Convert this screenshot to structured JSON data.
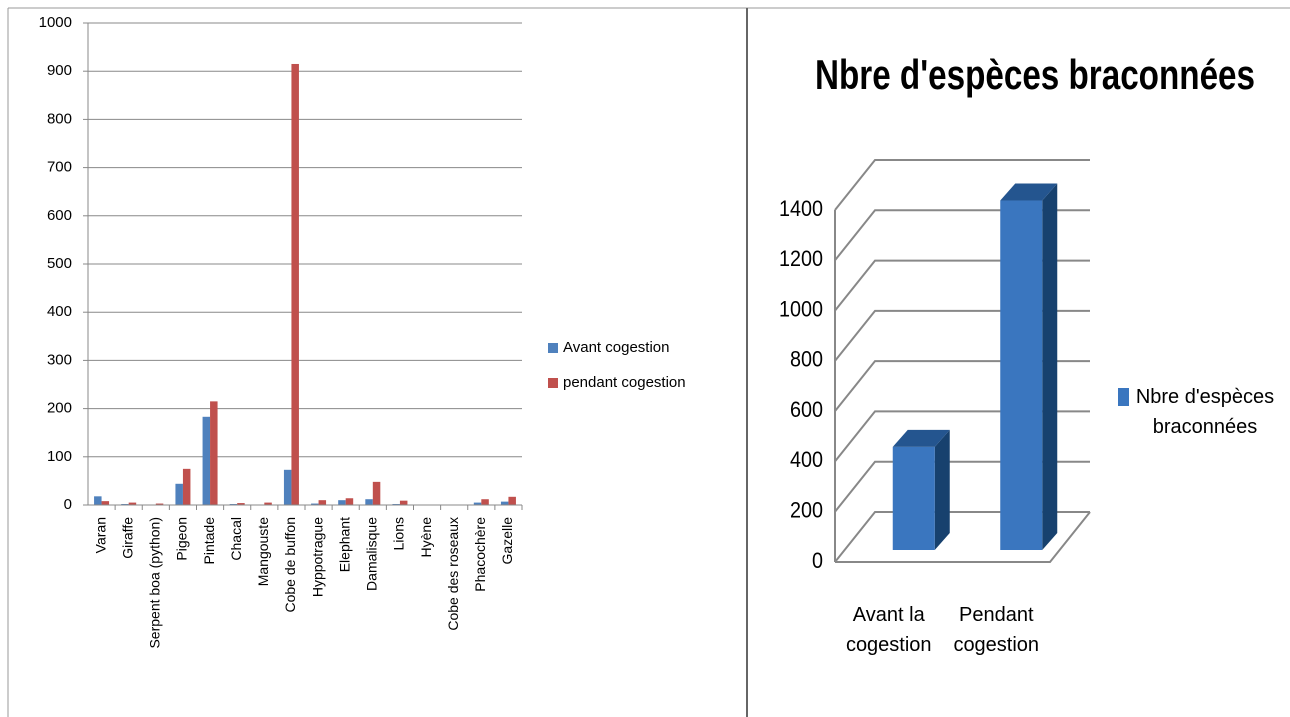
{
  "chart_data": [
    {
      "type": "bar",
      "categories": [
        "Varan",
        "Giraffe",
        "Serpent boa (python)",
        "Pigeon",
        "Pintade",
        "Chacal",
        "Mangouste",
        "Cobe de buffon",
        "Hyppotrague",
        "Elephant",
        "Damalisque",
        "Lions",
        "Hyène",
        "Cobe des roseaux",
        "Phacochère",
        "Gazelle"
      ],
      "series": [
        {
          "name": "Avant cogestion",
          "color": "#4f81bd",
          "values": [
            18,
            2,
            1,
            44,
            183,
            2,
            0,
            73,
            3,
            10,
            12,
            2,
            0,
            1,
            5,
            7
          ]
        },
        {
          "name": "pendant cogestion",
          "color": "#c0504d",
          "values": [
            8,
            5,
            3,
            75,
            215,
            4,
            5,
            915,
            10,
            14,
            48,
            9,
            1,
            0,
            12,
            17
          ]
        }
      ],
      "ylim": [
        0,
        1000
      ],
      "yticks": [
        0,
        100,
        200,
        300,
        400,
        500,
        600,
        700,
        800,
        900,
        1000
      ],
      "grid": true,
      "legend": "right"
    },
    {
      "type": "bar3d",
      "title": "Nbre d'espèces braconnées",
      "categories": [
        "Avant la cogestion",
        "Pendant cogestion"
      ],
      "series": [
        {
          "name": "Nbre d'espèces braconnées",
          "color": "#3a76bf",
          "values": [
            410,
            1390
          ]
        }
      ],
      "ylim": [
        0,
        1400
      ],
      "yticks": [
        0,
        200,
        400,
        600,
        800,
        1000,
        1200,
        1400
      ],
      "grid": true,
      "legend": "right"
    }
  ]
}
